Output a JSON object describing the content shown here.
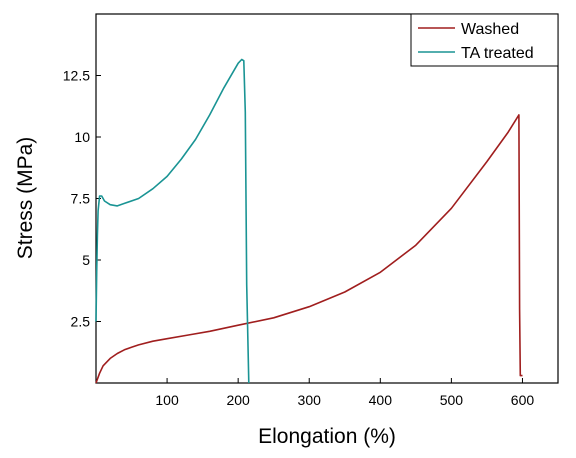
{
  "chart_data": {
    "type": "line",
    "title": "",
    "xlabel": "Elongation (%)",
    "ylabel": "Stress (MPa)",
    "xlim": [
      0,
      650
    ],
    "ylim": [
      0,
      15
    ],
    "x_ticks": [
      100,
      200,
      300,
      400,
      500,
      600
    ],
    "x_tick_labels": [
      "100",
      "200",
      "300",
      "400",
      "500",
      "600"
    ],
    "y_ticks": [
      2.5,
      5,
      7.5,
      10,
      12.5
    ],
    "y_tick_labels": [
      "2.5",
      "5",
      "7.5",
      "10",
      "12.5"
    ],
    "grid": false,
    "legend_position": "top-right",
    "series": [
      {
        "name": "Washed",
        "color": "#a01e1e",
        "x": [
          0,
          5,
          10,
          20,
          30,
          40,
          50,
          60,
          80,
          100,
          130,
          160,
          200,
          250,
          300,
          350,
          400,
          450,
          500,
          550,
          580,
          595,
          596,
          597,
          600
        ],
        "y": [
          0,
          0.4,
          0.7,
          1.0,
          1.2,
          1.35,
          1.45,
          1.55,
          1.7,
          1.8,
          1.95,
          2.1,
          2.35,
          2.65,
          3.1,
          3.7,
          4.5,
          5.6,
          7.1,
          9.0,
          10.2,
          10.9,
          3.0,
          0.3,
          0.3
        ]
      },
      {
        "name": "TA treated",
        "color": "#1a9494",
        "x": [
          0,
          1,
          2,
          3,
          5,
          8,
          12,
          20,
          30,
          40,
          60,
          80,
          100,
          120,
          140,
          160,
          180,
          200,
          205,
          208,
          210,
          212,
          215
        ],
        "y": [
          2.5,
          4.5,
          6.0,
          7.0,
          7.6,
          7.6,
          7.4,
          7.25,
          7.2,
          7.3,
          7.5,
          7.9,
          8.4,
          9.1,
          9.9,
          10.9,
          12.0,
          13.0,
          13.15,
          13.1,
          11.0,
          4.0,
          0
        ]
      }
    ]
  }
}
